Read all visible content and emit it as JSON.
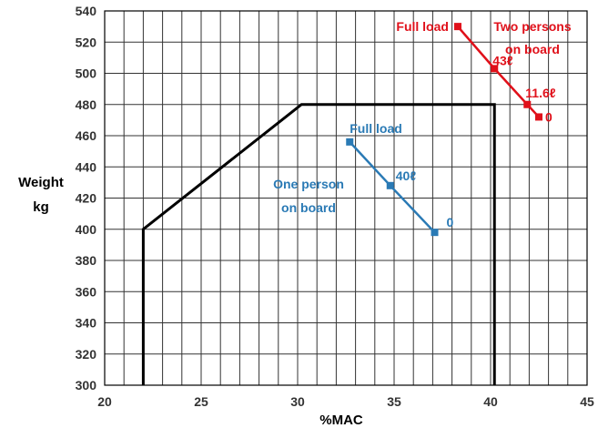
{
  "chart_data": {
    "type": "line",
    "xlabel": "%MAC",
    "ylabel": [
      "Weight",
      "kg"
    ],
    "xlim": [
      20,
      45
    ],
    "ylim": [
      300,
      540
    ],
    "x_ticks": [
      20,
      25,
      30,
      35,
      40,
      45
    ],
    "y_ticks": [
      300,
      320,
      340,
      360,
      380,
      400,
      420,
      440,
      460,
      480,
      500,
      520,
      540
    ],
    "minor_x_step": 1,
    "grid": true,
    "colors": {
      "envelope": "#000000",
      "one_person": "#2a7ab5",
      "two_persons": "#e0101a"
    },
    "envelope": {
      "x": [
        22,
        22,
        30.2,
        40.2,
        40.2
      ],
      "y": [
        300,
        400,
        480,
        480,
        300
      ]
    },
    "series": [
      {
        "name": "One person on board",
        "label_lines": [
          "One person",
          "on board"
        ],
        "x": [
          32.7,
          34.8,
          37.1
        ],
        "y": [
          456,
          428,
          398
        ],
        "point_labels": [
          "Full load",
          "40ℓ",
          "0"
        ]
      },
      {
        "name": "Two persons on board",
        "label_lines": [
          "Two persons",
          "on board"
        ],
        "x": [
          38.3,
          40.2,
          41.9,
          42.5
        ],
        "y": [
          530,
          503,
          480,
          472
        ],
        "point_labels": [
          "Full load",
          "43ℓ",
          "11.6ℓ",
          "0"
        ]
      }
    ]
  }
}
